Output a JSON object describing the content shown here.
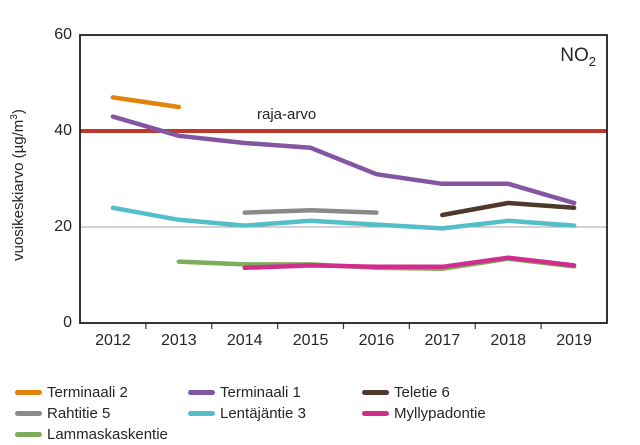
{
  "chart_data": {
    "type": "line",
    "title": "",
    "gas_annotation": {
      "text": "NO",
      "sub": "2"
    },
    "ylabel": {
      "pre": "vuosikeskiarvo (µg/m",
      "sup": "3",
      "post": ")"
    },
    "xlabel": "",
    "x": [
      "2012",
      "2013",
      "2014",
      "2015",
      "2016",
      "2017",
      "2018",
      "2019"
    ],
    "ylim": [
      0,
      60
    ],
    "y_ticks": [
      0,
      20,
      40,
      60
    ],
    "gridline_y": 20,
    "grid": "single horizontal line at 20",
    "legend_position": "bottom",
    "axis_color": "#1f1f1f",
    "gridline_color": "#a6a6a6",
    "limit_line": {
      "label": "raja-arvo",
      "value": 40,
      "color": "#be3a28"
    },
    "series": [
      {
        "name": "Rahtitie 5",
        "color": "#8a8a8a",
        "values": [
          null,
          null,
          23,
          23.5,
          23,
          null,
          null,
          null
        ]
      },
      {
        "name": "Lammaskaskentie",
        "color": "#7dad58",
        "values": [
          null,
          12.8,
          12.2,
          12.2,
          11.5,
          11.3,
          13.4,
          11.8
        ]
      },
      {
        "name": "Myllypadontie",
        "color": "#d02d8d",
        "values": [
          null,
          null,
          11.5,
          12,
          11.7,
          11.7,
          13.6,
          12
        ]
      },
      {
        "name": "Lentäjäntie 3",
        "color": "#52bfca",
        "values": [
          24,
          21.5,
          20.3,
          21.3,
          20.5,
          19.7,
          21.3,
          20.3
        ]
      },
      {
        "name": "Teletie 6",
        "color": "#50382a",
        "values": [
          null,
          null,
          null,
          null,
          null,
          22.5,
          25,
          24
        ]
      },
      {
        "name": "Terminaali 1",
        "color": "#8456a2",
        "values": [
          43,
          39,
          37.5,
          36.5,
          31,
          29,
          29,
          25
        ]
      },
      {
        "name": "Terminaali 2",
        "color": "#e2830c",
        "values": [
          47,
          45,
          null,
          null,
          null,
          null,
          null,
          null
        ]
      }
    ]
  },
  "legend": {
    "columns": [
      {
        "items": [
          {
            "label": "Terminaali 2",
            "color": "#e2830c"
          },
          {
            "label": "Rahtitie 5",
            "color": "#8a8a8a"
          },
          {
            "label": "Lammaskaskentie",
            "color": "#7dad58"
          }
        ]
      },
      {
        "items": [
          {
            "label": "Terminaali 1",
            "color": "#8456a2"
          },
          {
            "label": "Lentäjäntie 3",
            "color": "#52bfca"
          }
        ]
      },
      {
        "items": [
          {
            "label": "Teletie 6",
            "color": "#50382a"
          },
          {
            "label": "Myllypadontie",
            "color": "#d02d8d"
          }
        ]
      }
    ]
  }
}
